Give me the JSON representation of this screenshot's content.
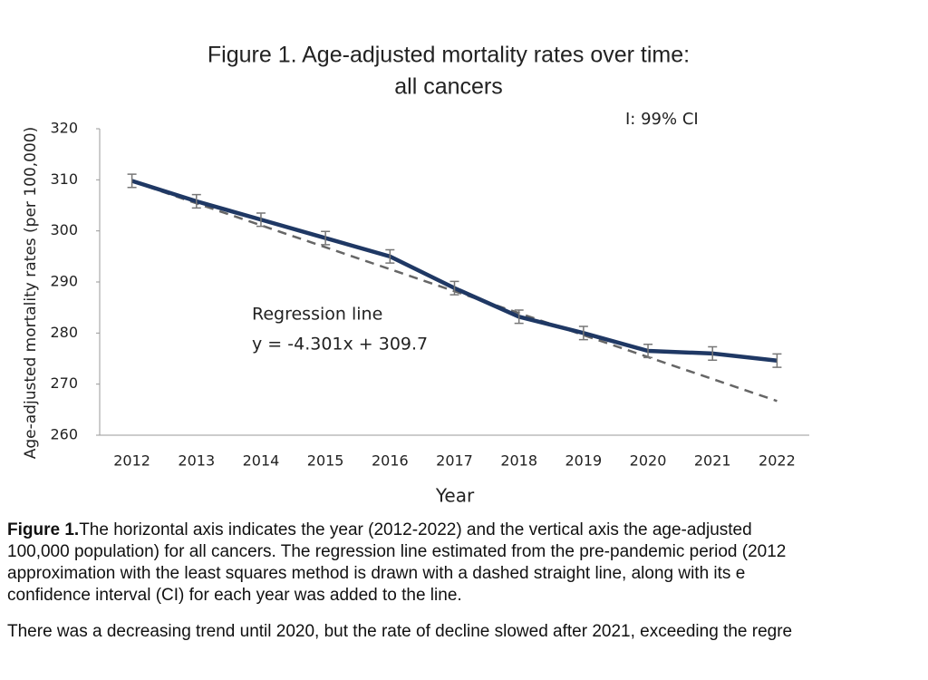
{
  "chart_data": {
    "type": "line",
    "title": [
      "Figure 1. Age-adjusted mortality rates over time:",
      "all cancers"
    ],
    "x_label": "Year",
    "y_label": "Age-adjusted mortality rates (per 100,000)",
    "legend_text": "I: 99% CI",
    "annotation": "y =  -4.301x + 309.7",
    "categories": [
      "2012",
      "2013",
      "2014",
      "2015",
      "2016",
      "2017",
      "2018",
      "2019",
      "2020",
      "2021",
      "2022"
    ],
    "series": [
      {
        "color": "#1f3864",
        "values": [
          309.8,
          305.8,
          302.2,
          298.6,
          295.0,
          288.8,
          283.2,
          280.0,
          276.5,
          276.0,
          274.6
        ],
        "errors": [
          1.3,
          1.3,
          1.3,
          1.3,
          1.3,
          1.3,
          1.3,
          1.3,
          1.3,
          1.3,
          1.3
        ]
      },
      {
        "name": "Regression line",
        "color": "#666666",
        "dashed": true,
        "values": [
          309.7,
          305.4,
          301.1,
          296.8,
          292.5,
          288.2,
          283.9,
          279.6,
          275.3,
          271.0,
          266.7
        ]
      }
    ],
    "ylim": [
      260,
      320
    ],
    "yticks": [
      260,
      270,
      280,
      290,
      300,
      310,
      320
    ],
    "grid": false
  },
  "caption": {
    "label": "Figure 1.",
    "lines": [
      "The horizontal axis indicates the year (2012-2022) and the vertical axis the age-adjusted",
      "100,000 population) for all cancers. The regression line estimated from the pre-pandemic period (2012",
      "approximation with the least squares method is drawn with a dashed straight line, along with its e",
      "confidence interval (CI) for each year was added to the line."
    ]
  },
  "paragraph": "There was a decreasing trend until 2020, but the rate of decline slowed after 2021, exceeding the regre"
}
